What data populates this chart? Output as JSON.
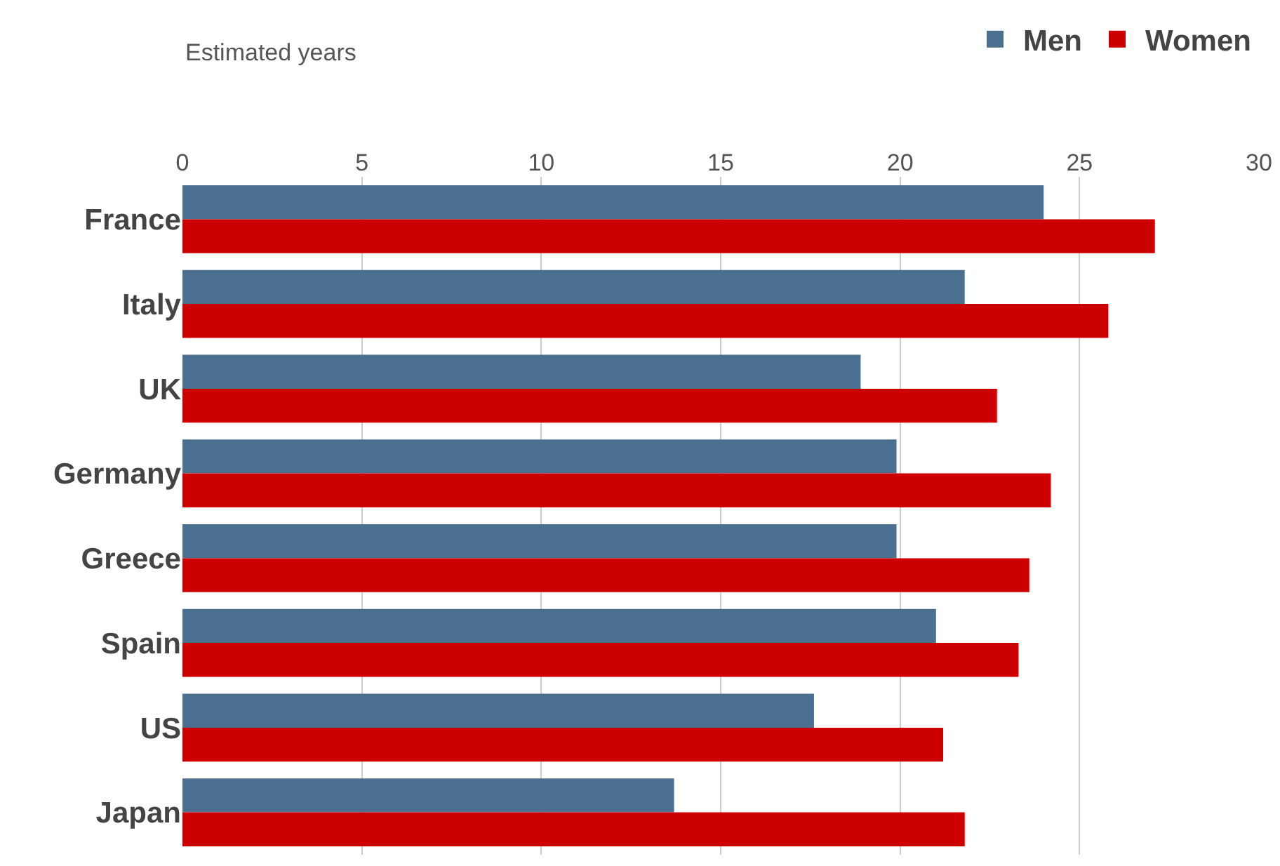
{
  "chart_data": {
    "type": "bar",
    "orientation": "horizontal",
    "xlabel": "Estimated years",
    "categories": [
      "France",
      "Italy",
      "UK",
      "Germany",
      "Greece",
      "Spain",
      "US",
      "Japan"
    ],
    "series": [
      {
        "name": "Men",
        "color": "#4a6f8f",
        "values": [
          24.0,
          21.8,
          18.9,
          19.9,
          19.9,
          21.0,
          17.6,
          13.7
        ]
      },
      {
        "name": "Women",
        "color": "#cc0000",
        "values": [
          27.1,
          25.8,
          22.7,
          24.2,
          23.6,
          23.3,
          21.2,
          21.8
        ]
      }
    ],
    "xlim": [
      0,
      30
    ],
    "xticks": [
      0,
      5,
      10,
      15,
      20,
      25,
      30
    ],
    "grid": "x",
    "legend": "top right"
  }
}
